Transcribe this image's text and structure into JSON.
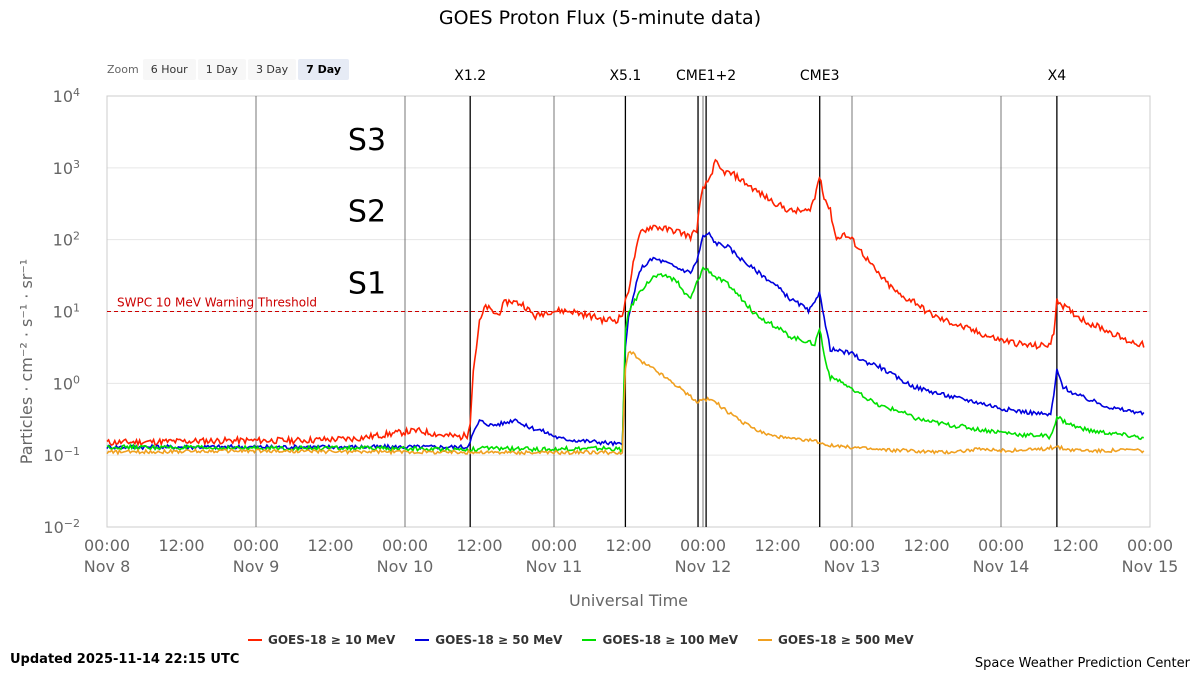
{
  "title": "GOES Proton Flux (5-minute data)",
  "zoom": {
    "label": "Zoom",
    "buttons": [
      "6 Hour",
      "1 Day",
      "3 Day",
      "7 Day"
    ],
    "active": "7 Day"
  },
  "updated": "Updated 2025-11-14 22:15 UTC",
  "credit": "Space Weather Prediction Center",
  "colors": {
    "s10": "#ff2200",
    "s50": "#0000dd",
    "s100": "#00e000",
    "s500": "#f0a020",
    "threshold": "#cc0000"
  },
  "chart_data": {
    "type": "line",
    "title": "GOES Proton Flux (5-minute data)",
    "xlabel": "Universal Time",
    "ylabel": "Particles · cm⁻² · s⁻¹ · sr⁻¹",
    "y_scale": "log",
    "ylim": [
      0.01,
      10000
    ],
    "xlim": [
      0,
      168
    ],
    "x_units": "hours since 2025-11-08 00:00 UTC",
    "y_ticks": [
      {
        "value": 10000,
        "base": "10",
        "exp": "4"
      },
      {
        "value": 1000,
        "base": "10",
        "exp": "3"
      },
      {
        "value": 100,
        "base": "10",
        "exp": "2"
      },
      {
        "value": 10,
        "base": "10",
        "exp": "1"
      },
      {
        "value": 1,
        "base": "10",
        "exp": "0"
      },
      {
        "value": 0.1,
        "base": "10",
        "exp": "−1"
      },
      {
        "value": 0.01,
        "base": "10",
        "exp": "−2"
      }
    ],
    "x_ticks": [
      {
        "hour": 0,
        "time": "00:00",
        "date": "Nov 8"
      },
      {
        "hour": 12,
        "time": "12:00",
        "date": ""
      },
      {
        "hour": 24,
        "time": "00:00",
        "date": "Nov 9"
      },
      {
        "hour": 36,
        "time": "12:00",
        "date": ""
      },
      {
        "hour": 48,
        "time": "00:00",
        "date": "Nov 10"
      },
      {
        "hour": 60,
        "time": "12:00",
        "date": ""
      },
      {
        "hour": 72,
        "time": "00:00",
        "date": "Nov 11"
      },
      {
        "hour": 84,
        "time": "12:00",
        "date": ""
      },
      {
        "hour": 96,
        "time": "00:00",
        "date": "Nov 12"
      },
      {
        "hour": 108,
        "time": "12:00",
        "date": ""
      },
      {
        "hour": 120,
        "time": "00:00",
        "date": "Nov 13"
      },
      {
        "hour": 132,
        "time": "12:00",
        "date": ""
      },
      {
        "hour": 144,
        "time": "00:00",
        "date": "Nov 14"
      },
      {
        "hour": 156,
        "time": "12:00",
        "date": ""
      },
      {
        "hour": 168,
        "time": "00:00",
        "date": "Nov 15"
      }
    ],
    "day_lines": [
      24,
      48,
      72,
      96,
      120,
      144
    ],
    "threshold": {
      "value": 10,
      "label": "SWPC 10 MeV Warning Threshold"
    },
    "scale_labels": [
      {
        "text": "S3",
        "value": 1000
      },
      {
        "text": "S2",
        "value": 100
      },
      {
        "text": "S1",
        "value": 10
      }
    ],
    "events": [
      {
        "hour": 58.5,
        "label": "X1.2"
      },
      {
        "hour": 83.5,
        "label": "X5.1"
      },
      {
        "hour": 95.2,
        "label": ""
      },
      {
        "hour": 96.5,
        "label": "CME1+2"
      },
      {
        "hour": 114.8,
        "label": "CME3"
      },
      {
        "hour": 153,
        "label": "X4"
      }
    ],
    "series": [
      {
        "name": "GOES-18 ≥ 10 MeV",
        "color": "#ff2200",
        "points": [
          [
            0,
            0.15
          ],
          [
            10,
            0.155
          ],
          [
            20,
            0.16
          ],
          [
            30,
            0.16
          ],
          [
            40,
            0.17
          ],
          [
            46,
            0.2
          ],
          [
            50,
            0.22
          ],
          [
            54,
            0.19
          ],
          [
            57,
            0.18
          ],
          [
            58,
            0.19
          ],
          [
            58.5,
            0.3
          ],
          [
            59,
            1.5
          ],
          [
            60,
            7
          ],
          [
            61,
            12
          ],
          [
            62,
            10
          ],
          [
            63,
            9
          ],
          [
            64,
            13
          ],
          [
            65,
            14
          ],
          [
            67,
            12.5
          ],
          [
            69,
            8.5
          ],
          [
            71,
            10
          ],
          [
            73,
            10.3
          ],
          [
            75,
            10
          ],
          [
            77,
            9
          ],
          [
            79,
            8.2
          ],
          [
            80,
            7.5
          ],
          [
            81,
            7.8
          ],
          [
            82,
            7.5
          ],
          [
            83,
            9
          ],
          [
            84,
            20
          ],
          [
            85,
            60
          ],
          [
            86,
            130
          ],
          [
            88,
            155
          ],
          [
            90,
            140
          ],
          [
            92,
            130
          ],
          [
            94,
            110
          ],
          [
            95,
            140
          ],
          [
            95.5,
            300
          ],
          [
            96,
            500
          ],
          [
            97,
            700
          ],
          [
            98,
            1200
          ],
          [
            99,
            900
          ],
          [
            101,
            800
          ],
          [
            103,
            600
          ],
          [
            105,
            450
          ],
          [
            107,
            350
          ],
          [
            110,
            250
          ],
          [
            113,
            250
          ],
          [
            114,
            380
          ],
          [
            114.8,
            800
          ],
          [
            115.5,
            400
          ],
          [
            116.5,
            250
          ],
          [
            117.5,
            100
          ],
          [
            118.5,
            120
          ],
          [
            120,
            100
          ],
          [
            122,
            60
          ],
          [
            124,
            35
          ],
          [
            126,
            23
          ],
          [
            128,
            16
          ],
          [
            130,
            14
          ],
          [
            132,
            10
          ],
          [
            134,
            8
          ],
          [
            136,
            7
          ],
          [
            138,
            6
          ],
          [
            140,
            5.2
          ],
          [
            142,
            4.5
          ],
          [
            144,
            4
          ],
          [
            146,
            3.7
          ],
          [
            148,
            3.4
          ],
          [
            150,
            3.3
          ],
          [
            152,
            3.5
          ],
          [
            152.5,
            5
          ],
          [
            153,
            15
          ],
          [
            154,
            12
          ],
          [
            156,
            9
          ],
          [
            158,
            7
          ],
          [
            160,
            6
          ],
          [
            162,
            5
          ],
          [
            164,
            4
          ],
          [
            166,
            3.6
          ],
          [
            167,
            3.4
          ]
        ]
      },
      {
        "name": "GOES-18 ≥ 50 MeV",
        "color": "#0000dd",
        "points": [
          [
            0,
            0.13
          ],
          [
            20,
            0.13
          ],
          [
            40,
            0.13
          ],
          [
            58,
            0.13
          ],
          [
            59,
            0.2
          ],
          [
            60,
            0.3
          ],
          [
            62,
            0.26
          ],
          [
            64,
            0.28
          ],
          [
            66,
            0.32
          ],
          [
            67,
            0.26
          ],
          [
            70,
            0.22
          ],
          [
            73,
            0.17
          ],
          [
            76,
            0.16
          ],
          [
            80,
            0.15
          ],
          [
            83,
            0.14
          ],
          [
            83.5,
            3
          ],
          [
            84,
            8
          ],
          [
            85,
            20
          ],
          [
            86,
            40
          ],
          [
            88,
            55
          ],
          [
            90,
            48
          ],
          [
            92,
            40
          ],
          [
            94,
            35
          ],
          [
            95,
            50
          ],
          [
            96,
            110
          ],
          [
            97,
            120
          ],
          [
            98,
            90
          ],
          [
            100,
            80
          ],
          [
            102,
            55
          ],
          [
            104,
            40
          ],
          [
            106,
            30
          ],
          [
            108,
            22
          ],
          [
            110,
            15
          ],
          [
            112,
            12
          ],
          [
            113,
            10
          ],
          [
            114,
            13
          ],
          [
            114.8,
            20
          ],
          [
            115.5,
            8
          ],
          [
            116.5,
            3
          ],
          [
            118,
            2.8
          ],
          [
            120,
            2.6
          ],
          [
            122,
            2
          ],
          [
            124,
            1.8
          ],
          [
            126,
            1.4
          ],
          [
            128,
            1.1
          ],
          [
            130,
            0.9
          ],
          [
            132,
            0.8
          ],
          [
            134,
            0.72
          ],
          [
            136,
            0.65
          ],
          [
            138,
            0.6
          ],
          [
            140,
            0.55
          ],
          [
            142,
            0.5
          ],
          [
            144,
            0.45
          ],
          [
            146,
            0.42
          ],
          [
            148,
            0.4
          ],
          [
            150,
            0.38
          ],
          [
            152,
            0.36
          ],
          [
            152.6,
            0.8
          ],
          [
            153,
            1.5
          ],
          [
            154,
            0.9
          ],
          [
            156,
            0.7
          ],
          [
            158,
            0.6
          ],
          [
            160,
            0.52
          ],
          [
            162,
            0.45
          ],
          [
            164,
            0.42
          ],
          [
            166,
            0.4
          ],
          [
            167,
            0.37
          ]
        ]
      },
      {
        "name": "GOES-18 ≥ 100 MeV",
        "color": "#00e000",
        "points": [
          [
            0,
            0.13
          ],
          [
            20,
            0.125
          ],
          [
            40,
            0.125
          ],
          [
            58,
            0.12
          ],
          [
            62,
            0.125
          ],
          [
            70,
            0.12
          ],
          [
            80,
            0.125
          ],
          [
            83,
            0.12
          ],
          [
            83.5,
            5
          ],
          [
            84,
            10
          ],
          [
            85,
            14
          ],
          [
            86,
            20
          ],
          [
            88,
            30
          ],
          [
            90,
            32
          ],
          [
            92,
            25
          ],
          [
            93,
            18
          ],
          [
            94,
            15
          ],
          [
            95,
            25
          ],
          [
            96,
            40
          ],
          [
            97,
            37
          ],
          [
            98,
            30
          ],
          [
            100,
            24
          ],
          [
            102,
            16
          ],
          [
            104,
            10
          ],
          [
            106,
            7.5
          ],
          [
            108,
            6
          ],
          [
            110,
            4.5
          ],
          [
            112,
            4
          ],
          [
            114,
            3.5
          ],
          [
            114.8,
            6
          ],
          [
            115.5,
            2.5
          ],
          [
            116.5,
            1.2
          ],
          [
            118,
            1.1
          ],
          [
            120,
            0.8
          ],
          [
            122,
            0.65
          ],
          [
            124,
            0.5
          ],
          [
            126,
            0.45
          ],
          [
            128,
            0.4
          ],
          [
            130,
            0.33
          ],
          [
            132,
            0.3
          ],
          [
            134,
            0.28
          ],
          [
            136,
            0.26
          ],
          [
            138,
            0.25
          ],
          [
            140,
            0.23
          ],
          [
            142,
            0.22
          ],
          [
            144,
            0.21
          ],
          [
            146,
            0.2
          ],
          [
            148,
            0.19
          ],
          [
            150,
            0.19
          ],
          [
            152,
            0.18
          ],
          [
            152.6,
            0.26
          ],
          [
            153,
            0.35
          ],
          [
            154,
            0.3
          ],
          [
            156,
            0.25
          ],
          [
            158,
            0.22
          ],
          [
            160,
            0.21
          ],
          [
            162,
            0.2
          ],
          [
            164,
            0.19
          ],
          [
            166,
            0.18
          ],
          [
            167,
            0.17
          ]
        ]
      },
      {
        "name": "GOES-18 ≥ 500 MeV",
        "color": "#f0a020",
        "points": [
          [
            0,
            0.11
          ],
          [
            20,
            0.115
          ],
          [
            40,
            0.112
          ],
          [
            58,
            0.11
          ],
          [
            70,
            0.108
          ],
          [
            80,
            0.11
          ],
          [
            83,
            0.105
          ],
          [
            83.5,
            1.5
          ],
          [
            84,
            2.8
          ],
          [
            85,
            2.5
          ],
          [
            86,
            2
          ],
          [
            88,
            1.6
          ],
          [
            90,
            1.2
          ],
          [
            92,
            0.9
          ],
          [
            94,
            0.65
          ],
          [
            95,
            0.55
          ],
          [
            96,
            0.6
          ],
          [
            97,
            0.6
          ],
          [
            98,
            0.55
          ],
          [
            100,
            0.4
          ],
          [
            102,
            0.3
          ],
          [
            104,
            0.24
          ],
          [
            106,
            0.2
          ],
          [
            108,
            0.18
          ],
          [
            110,
            0.17
          ],
          [
            112,
            0.16
          ],
          [
            114,
            0.16
          ],
          [
            116,
            0.14
          ],
          [
            118,
            0.13
          ],
          [
            120,
            0.13
          ],
          [
            124,
            0.12
          ],
          [
            130,
            0.115
          ],
          [
            135,
            0.11
          ],
          [
            140,
            0.12
          ],
          [
            145,
            0.115
          ],
          [
            150,
            0.12
          ],
          [
            153,
            0.13
          ],
          [
            155,
            0.12
          ],
          [
            160,
            0.115
          ],
          [
            165,
            0.12
          ],
          [
            167,
            0.115
          ]
        ]
      }
    ]
  }
}
